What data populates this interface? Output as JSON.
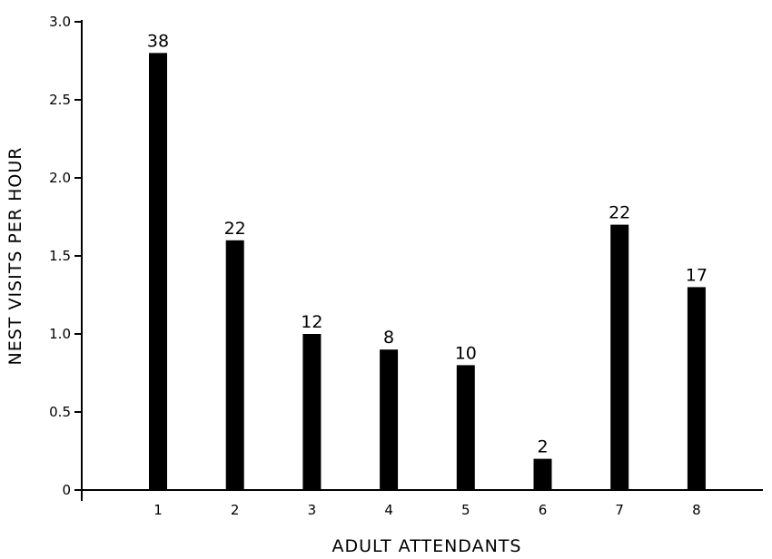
{
  "chart_data": {
    "type": "bar",
    "title": "",
    "xlabel": "ADULT ATTENDANTS",
    "ylabel": "NEST VISITS PER HOUR",
    "categories": [
      "1",
      "2",
      "3",
      "4",
      "5",
      "6",
      "7",
      "8"
    ],
    "values": [
      2.8,
      1.6,
      1.0,
      0.9,
      0.8,
      0.2,
      1.7,
      1.3
    ],
    "bar_labels": [
      "38",
      "22",
      "12",
      "8",
      "10",
      "2",
      "22",
      "17"
    ],
    "ylim": [
      0,
      3.0
    ],
    "yticks": [
      0,
      0.5,
      1.0,
      1.5,
      2.0,
      2.5,
      3.0
    ],
    "ytick_labels": [
      "0",
      "0.5",
      "1.0",
      "1.5",
      "2.0",
      "2.5",
      "3.0"
    ],
    "grid": false,
    "legend": "none",
    "bar_color": "#000000"
  }
}
